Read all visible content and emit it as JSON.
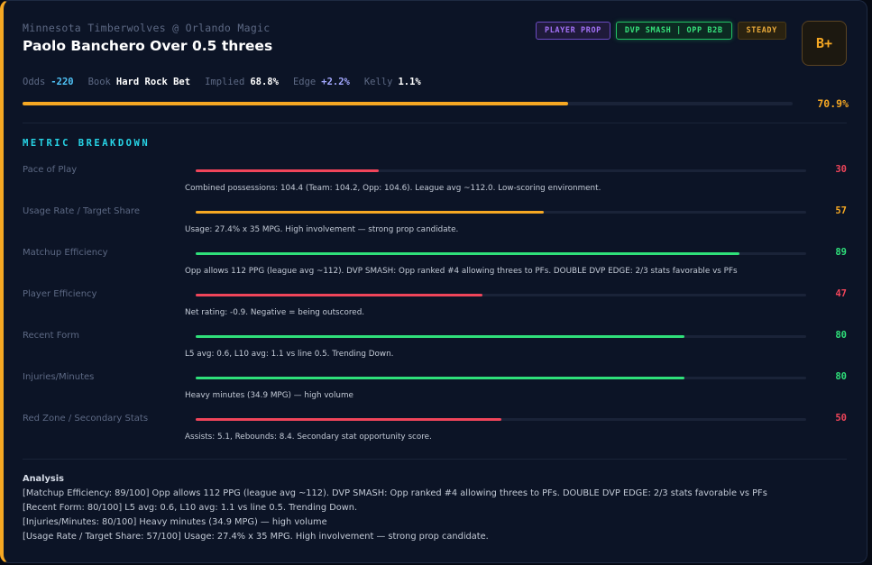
{
  "header": {
    "matchup": "Minnesota Timberwolves @ Orlando Magic",
    "title": "Paolo Banchero Over 0.5 threes",
    "grade": "B+"
  },
  "badges": [
    "PLAYER PROP",
    "DVP SMASH | OPP B2B",
    "STEADY"
  ],
  "stats": {
    "odds_label": "Odds",
    "odds": "-220",
    "book_label": "Book",
    "book": "Hard Rock Bet",
    "implied_label": "Implied",
    "implied": "68.8%",
    "edge_label": "Edge",
    "edge": "+2.2%",
    "kelly_label": "Kelly",
    "kelly": "1.1%"
  },
  "confidence": {
    "value": 70.9,
    "label": "70.9%"
  },
  "breakdown_title": "METRIC BREAKDOWN",
  "metrics": [
    {
      "label": "Pace of Play",
      "score": 30,
      "score_text": "30",
      "color": "#f0455a",
      "desc": "Combined possessions: 104.4 (Team: 104.2, Opp: 104.6). League avg ~112.0. Low-scoring environment."
    },
    {
      "label": "Usage Rate / Target Share",
      "score": 57,
      "score_text": "57",
      "color": "#f6a823",
      "desc": "Usage: 27.4% x 35 MPG. High involvement — strong prop candidate."
    },
    {
      "label": "Matchup Efficiency",
      "score": 89,
      "score_text": "89",
      "color": "#2fe07a",
      "desc": "Opp allows 112 PPG (league avg ~112). DVP SMASH: Opp ranked #4 allowing threes to PFs. DOUBLE DVP EDGE: 2/3 stats favorable vs PFs"
    },
    {
      "label": "Player Efficiency",
      "score": 47,
      "score_text": "47",
      "color": "#f0455a",
      "desc": "Net rating: -0.9. Negative = being outscored."
    },
    {
      "label": "Recent Form",
      "score": 80,
      "score_text": "80",
      "color": "#2fe07a",
      "desc": "L5 avg: 0.6, L10 avg: 1.1 vs line 0.5. Trending Down."
    },
    {
      "label": "Injuries/Minutes",
      "score": 80,
      "score_text": "80",
      "color": "#2fe07a",
      "desc": "Heavy minutes (34.9 MPG) — high volume"
    },
    {
      "label": "Red Zone / Secondary Stats",
      "score": 50,
      "score_text": "50",
      "color": "#f0455a",
      "desc": "Assists: 5.1, Rebounds: 8.4. Secondary stat opportunity score."
    }
  ],
  "analysis": {
    "title": "Analysis",
    "lines": [
      "[Matchup Efficiency: 89/100] Opp allows 112 PPG (league avg ~112). DVP SMASH: Opp ranked #4 allowing threes to PFs. DOUBLE DVP EDGE: 2/3 stats favorable vs PFs",
      "[Recent Form: 80/100] L5 avg: 0.6, L10 avg: 1.1 vs line 0.5. Trending Down.",
      "[Injuries/Minutes: 80/100] Heavy minutes (34.9 MPG) — high volume",
      "[Usage Rate / Target Share: 57/100] Usage: 27.4% x 35 MPG. High involvement — strong prop candidate."
    ]
  }
}
